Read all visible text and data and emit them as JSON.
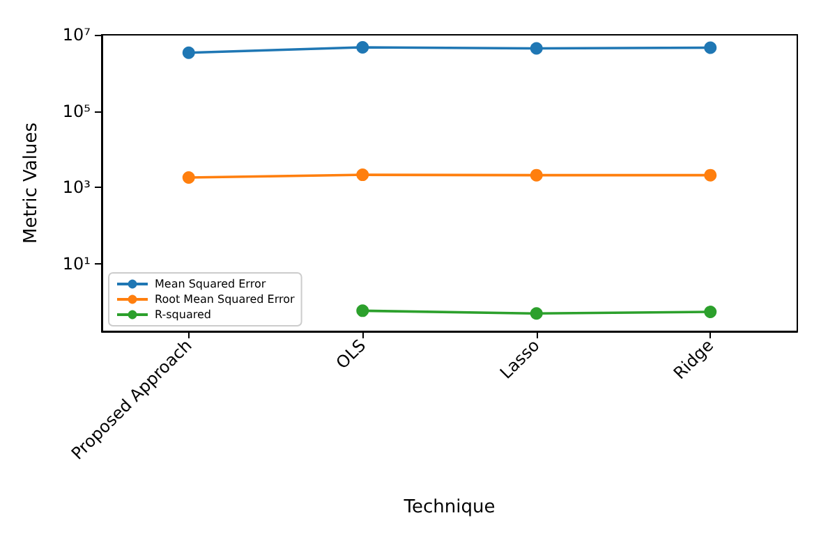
{
  "chart_data": {
    "type": "line",
    "xlabel": "Technique",
    "ylabel": "Metric Values",
    "categories": [
      "Proposed Approach",
      "OLS",
      "Lasso",
      "Ridge"
    ],
    "series": [
      {
        "name": "Mean Squared Error",
        "color": "#1f77b4",
        "values": [
          3400000,
          4700000,
          4400000,
          4600000
        ]
      },
      {
        "name": "Root Mean Squared Error",
        "color": "#ff7f0e",
        "values": [
          1820,
          2150,
          2100,
          2100
        ]
      },
      {
        "name": "R-squared",
        "color": "#2ca02c",
        "values": [
          null,
          0.59,
          0.5,
          0.55
        ]
      }
    ],
    "log": true,
    "ylim": [
      0.17,
      10000000
    ],
    "yticks": [
      {
        "value": 10,
        "label": "10¹"
      },
      {
        "value": 1000,
        "label": "10³"
      },
      {
        "value": 100000,
        "label": "10⁵"
      },
      {
        "value": 10000000,
        "label": "10⁷"
      }
    ],
    "legend": "bottom left",
    "marker": "circle",
    "grid": false
  }
}
